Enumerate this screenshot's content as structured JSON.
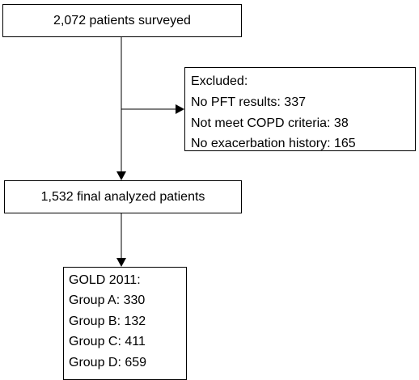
{
  "nodes": [
    {
      "label": "2,072 patients surveyed"
    },
    {
      "lines": [
        "Excluded:",
        "No PFT results: 337",
        "Not meet COPD criteria: 38",
        "No exacerbation history: 165"
      ]
    },
    {
      "label": "1,532 final analyzed patients"
    },
    {
      "lines": [
        "GOLD 2011:",
        "Group A: 330",
        "Group B: 132",
        "Group C: 411",
        "Group D: 659"
      ]
    }
  ]
}
